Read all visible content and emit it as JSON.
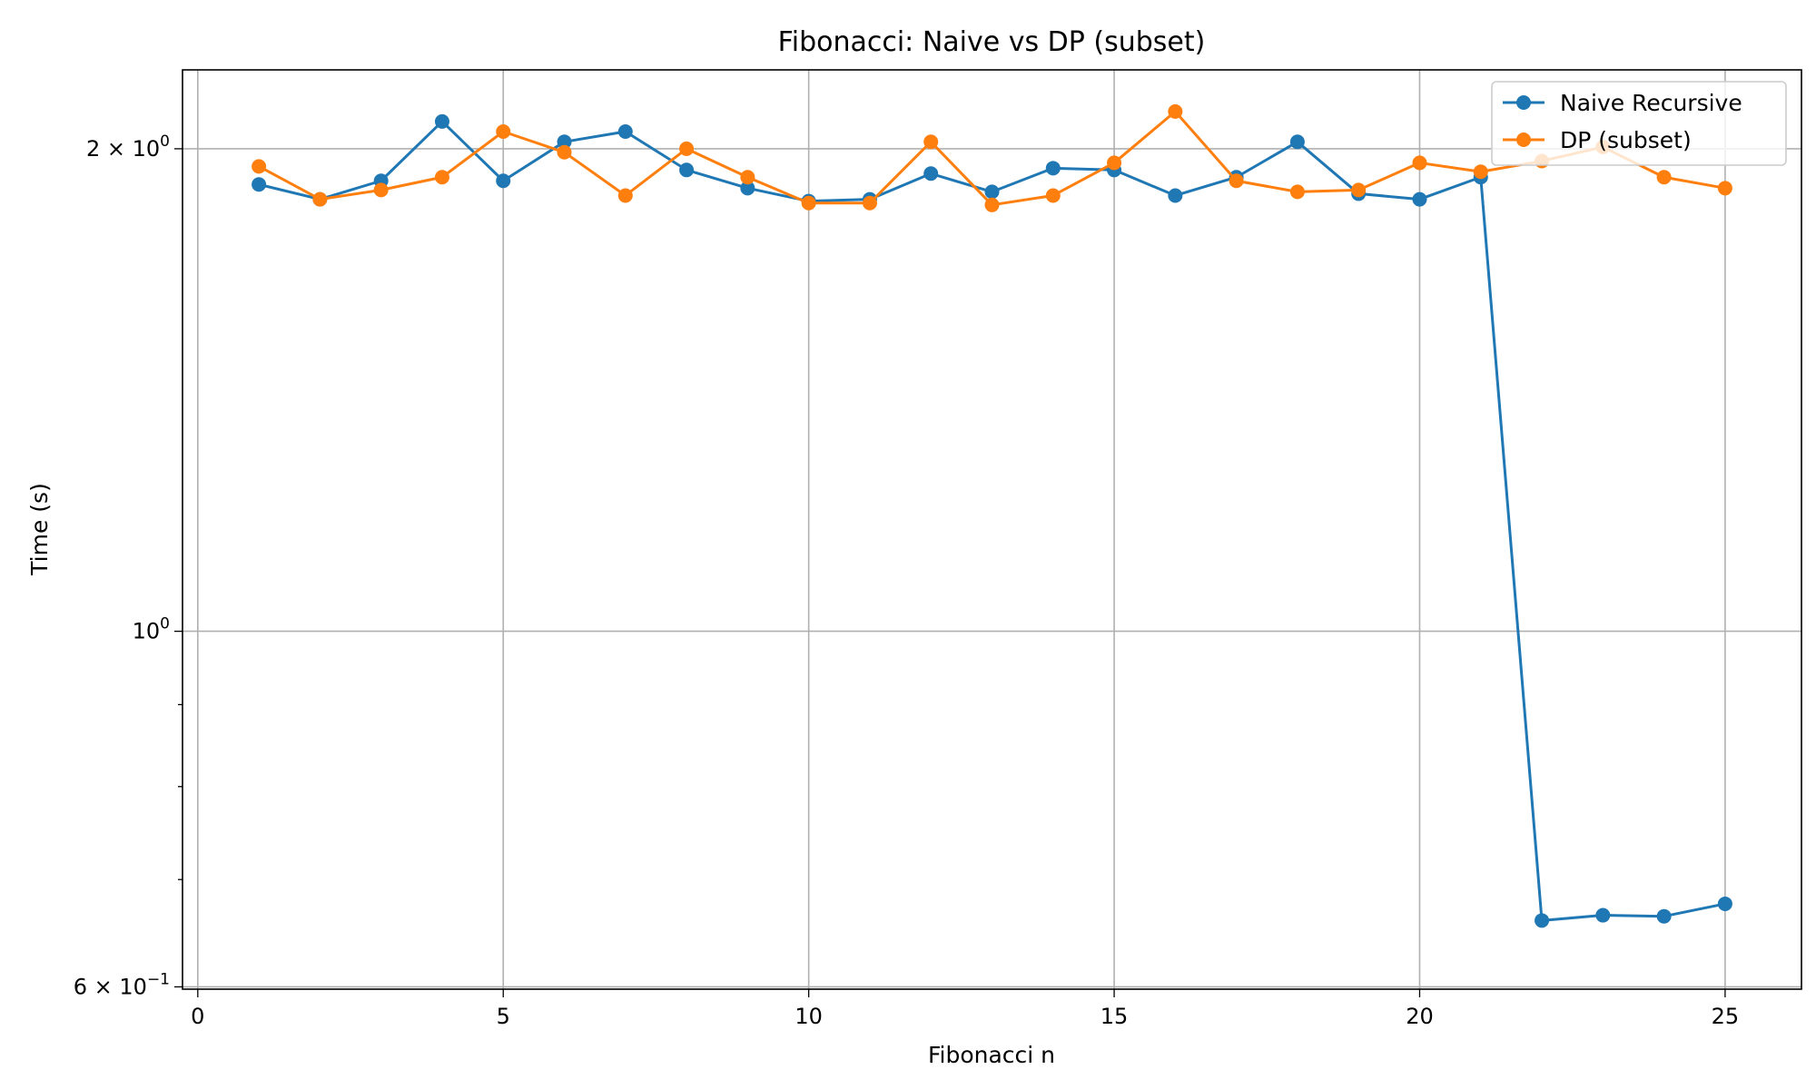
{
  "colors": {
    "naive": "#1f77b4",
    "dp": "#ff7f0e",
    "grid": "#b0b0b0"
  },
  "chart_data": {
    "type": "line",
    "title": "Fibonacci: Naive vs DP (subset)",
    "xlabel": "Fibonacci n",
    "ylabel": "Time (s)",
    "y_scale": "log",
    "xlim": [
      -0.25,
      26.25
    ],
    "ylim": [
      0.598,
      2.24
    ],
    "grid": true,
    "legend_position": "top-right",
    "x_ticks": [
      0,
      5,
      10,
      15,
      20,
      25
    ],
    "x_tick_labels": [
      "0",
      "5",
      "10",
      "15",
      "20",
      "25"
    ],
    "y_major_ticks": [
      {
        "value": 0.6,
        "base": "6",
        "exp": "−1",
        "label": "6 × 10⁻¹"
      },
      {
        "value": 1.0,
        "base": "10",
        "exp": "0",
        "label": "10⁰"
      },
      {
        "value": 2.0,
        "base": "2",
        "exp": "0",
        "label": "2 × 10⁰"
      }
    ],
    "y_minor_ticks": [
      0.7,
      0.8,
      0.9
    ],
    "x": [
      1,
      2,
      3,
      4,
      5,
      6,
      7,
      8,
      9,
      10,
      11,
      12,
      13,
      14,
      15,
      16,
      17,
      18,
      19,
      20,
      21,
      22,
      23,
      24,
      25
    ],
    "series": [
      {
        "name": "Naive Recursive",
        "color": "#1f77b4",
        "values": [
          1.9,
          1.86,
          1.91,
          2.08,
          1.91,
          2.02,
          2.05,
          1.94,
          1.89,
          1.855,
          1.86,
          1.93,
          1.88,
          1.945,
          1.94,
          1.87,
          1.92,
          2.02,
          1.875,
          1.86,
          1.92,
          0.66,
          0.665,
          0.664,
          0.676
        ]
      },
      {
        "name": "DP (subset)",
        "color": "#ff7f0e",
        "values": [
          1.95,
          1.86,
          1.885,
          1.92,
          2.05,
          1.99,
          1.87,
          2.0,
          1.92,
          1.85,
          1.85,
          2.02,
          1.845,
          1.87,
          1.96,
          2.11,
          1.91,
          1.88,
          1.885,
          1.96,
          1.935,
          1.965,
          2.005,
          1.92,
          1.89
        ]
      }
    ]
  }
}
